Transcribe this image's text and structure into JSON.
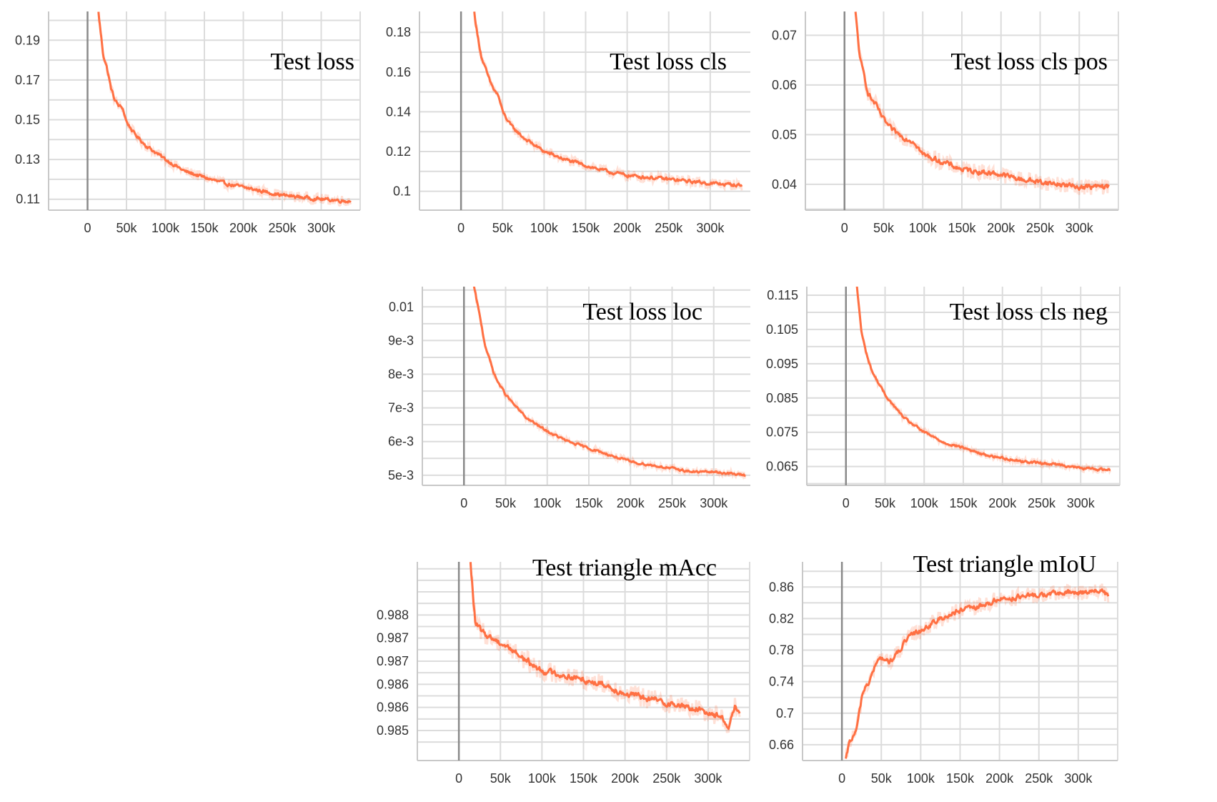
{
  "colors": {
    "series": "#ff7043",
    "grid": "#dcdcdc",
    "zero_line": "#8a8a8a"
  },
  "chart_data": [
    {
      "id": "test-loss",
      "type": "line",
      "title": "Test loss",
      "xlabel": "",
      "ylabel": "",
      "xlim": [
        -50000,
        350000
      ],
      "ylim": [
        0.1045,
        0.2045
      ],
      "x_ticks": [
        0,
        50000,
        100000,
        150000,
        200000,
        250000,
        300000
      ],
      "x_tick_labels": [
        "0",
        "50k",
        "100k",
        "150k",
        "200k",
        "250k",
        "300k"
      ],
      "y_ticks": [
        0.11,
        0.13,
        0.15,
        0.17,
        0.19
      ],
      "y_tick_labels": [
        "0.11",
        "0.13",
        "0.15",
        "0.17",
        "0.19"
      ],
      "grid": true,
      "noise": 0.0015,
      "series": [
        {
          "x": [
            14000,
            20000,
            25000,
            30000,
            35000,
            40000,
            45000,
            50000,
            60000,
            75000,
            100000,
            125000,
            150000,
            175000,
            200000,
            225000,
            250000,
            275000,
            300000,
            338000
          ],
          "y": [
            0.204,
            0.183,
            0.176,
            0.166,
            0.16,
            0.157,
            0.156,
            0.149,
            0.143,
            0.137,
            0.13,
            0.124,
            0.121,
            0.118,
            0.116,
            0.114,
            0.112,
            0.111,
            0.11,
            0.109
          ]
        }
      ]
    },
    {
      "id": "test-loss-cls",
      "type": "line",
      "title": "Test loss cls",
      "xlabel": "",
      "ylabel": "",
      "xlim": [
        -50000,
        350000
      ],
      "ylim": [
        0.0905,
        0.1905
      ],
      "x_ticks": [
        0,
        50000,
        100000,
        150000,
        200000,
        250000,
        300000
      ],
      "x_tick_labels": [
        "0",
        "50k",
        "100k",
        "150k",
        "200k",
        "250k",
        "300k"
      ],
      "y_ticks": [
        0.1,
        0.12,
        0.14,
        0.16,
        0.18
      ],
      "y_tick_labels": [
        "0.1",
        "0.12",
        "0.14",
        "0.16",
        "0.18"
      ],
      "grid": true,
      "noise": 0.0015,
      "series": [
        {
          "x": [
            16000,
            20000,
            25000,
            30000,
            35000,
            40000,
            45000,
            50000,
            60000,
            75000,
            100000,
            125000,
            150000,
            175000,
            200000,
            225000,
            250000,
            275000,
            300000,
            338000
          ],
          "y": [
            0.19,
            0.178,
            0.167,
            0.161,
            0.155,
            0.151,
            0.148,
            0.14,
            0.133,
            0.127,
            0.12,
            0.116,
            0.113,
            0.11,
            0.108,
            0.107,
            0.106,
            0.105,
            0.104,
            0.103
          ]
        }
      ]
    },
    {
      "id": "test-loss-cls-pos",
      "type": "line",
      "title": "Test loss cls  pos",
      "xlabel": "",
      "ylabel": "",
      "xlim": [
        -50000,
        350000
      ],
      "ylim": [
        0.0348,
        0.0748
      ],
      "x_ticks": [
        0,
        50000,
        100000,
        150000,
        200000,
        250000,
        300000
      ],
      "x_tick_labels": [
        "0",
        "50k",
        "100k",
        "150k",
        "200k",
        "250k",
        "300k"
      ],
      "y_ticks": [
        0.04,
        0.05,
        0.06,
        0.07
      ],
      "y_tick_labels": [
        "0.04",
        "0.05",
        "0.06",
        "0.07"
      ],
      "grid": true,
      "noise": 0.0009,
      "series": [
        {
          "x": [
            14000,
            20000,
            25000,
            30000,
            35000,
            40000,
            45000,
            50000,
            60000,
            75000,
            90000,
            100000,
            125000,
            150000,
            175000,
            200000,
            225000,
            250000,
            275000,
            300000,
            338000
          ],
          "y": [
            0.0745,
            0.065,
            0.062,
            0.0585,
            0.057,
            0.056,
            0.0545,
            0.053,
            0.051,
            0.0495,
            0.0485,
            0.046,
            0.0445,
            0.043,
            0.0425,
            0.042,
            0.041,
            0.0405,
            0.04,
            0.0395,
            0.0395
          ]
        }
      ]
    },
    {
      "id": "test-loss-loc",
      "type": "line",
      "title": "Test loss loc",
      "xlabel": "",
      "ylabel": "",
      "xlim": [
        -50000,
        350000
      ],
      "ylim": [
        0.0047,
        0.0106
      ],
      "x_ticks": [
        0,
        50000,
        100000,
        150000,
        200000,
        250000,
        300000
      ],
      "x_tick_labels": [
        "0",
        "50k",
        "100k",
        "150k",
        "200k",
        "250k",
        "300k"
      ],
      "y_ticks": [
        0.005,
        0.006,
        0.007,
        0.008,
        0.009,
        0.01
      ],
      "y_tick_labels": [
        "5e-3",
        "6e-3",
        "7e-3",
        "8e-3",
        "9e-3",
        "0.01"
      ],
      "grid": true,
      "noise": 6e-05,
      "series": [
        {
          "x": [
            12000,
            20000,
            25000,
            30000,
            35000,
            40000,
            45000,
            50000,
            60000,
            75000,
            100000,
            125000,
            150000,
            175000,
            200000,
            225000,
            250000,
            275000,
            300000,
            338000
          ],
          "y": [
            0.0106,
            0.0096,
            0.0089,
            0.0085,
            0.0081,
            0.0078,
            0.0076,
            0.0074,
            0.0071,
            0.0067,
            0.0063,
            0.006,
            0.0058,
            0.0056,
            0.0054,
            0.0053,
            0.0052,
            0.0051,
            0.0051,
            0.005
          ]
        }
      ]
    },
    {
      "id": "test-loss-cls-neg",
      "type": "line",
      "title": "Test loss cls  neg",
      "xlabel": "",
      "ylabel": "",
      "xlim": [
        -50000,
        350000
      ],
      "ylim": [
        0.0595,
        0.1175
      ],
      "x_ticks": [
        0,
        50000,
        100000,
        150000,
        200000,
        250000,
        300000
      ],
      "x_tick_labels": [
        "0",
        "50k",
        "100k",
        "150k",
        "200k",
        "250k",
        "300k"
      ],
      "y_ticks": [
        0.065,
        0.075,
        0.085,
        0.095,
        0.105,
        0.115
      ],
      "y_tick_labels": [
        "0.065",
        "0.075",
        "0.085",
        "0.095",
        "0.105",
        "0.115"
      ],
      "grid": true,
      "noise": 0.0006,
      "series": [
        {
          "x": [
            14000,
            20000,
            25000,
            30000,
            35000,
            40000,
            45000,
            50000,
            60000,
            75000,
            100000,
            125000,
            150000,
            175000,
            200000,
            225000,
            250000,
            275000,
            300000,
            338000
          ],
          "y": [
            0.1175,
            0.104,
            0.099,
            0.095,
            0.092,
            0.09,
            0.088,
            0.086,
            0.083,
            0.079,
            0.075,
            0.072,
            0.0705,
            0.0685,
            0.0675,
            0.0665,
            0.066,
            0.0655,
            0.0645,
            0.064
          ]
        }
      ]
    },
    {
      "id": "test-triangle-macc",
      "type": "line",
      "title": "Test triangle  mAcc",
      "xlabel": "",
      "ylabel": "",
      "xlim": [
        -50000,
        350000
      ],
      "ylim": [
        0.98455,
        0.98885
      ],
      "x_ticks": [
        0,
        50000,
        100000,
        150000,
        200000,
        250000,
        300000
      ],
      "x_tick_labels": [
        "0",
        "50k",
        "100k",
        "150k",
        "200k",
        "250k",
        "300k"
      ],
      "y_ticks": [
        0.9852,
        0.9857,
        0.9862,
        0.9867,
        0.9872,
        0.9877
      ],
      "y_tick_labels": [
        "0.985",
        "0.986",
        "0.986",
        "0.987",
        "0.987",
        "0.988"
      ],
      "grid": true,
      "noise": 0.00012,
      "series": [
        {
          "x": [
            14000,
            20000,
            30000,
            40000,
            50000,
            60000,
            75000,
            90000,
            100000,
            125000,
            150000,
            175000,
            200000,
            225000,
            250000,
            275000,
            300000,
            315000,
            325000,
            332000,
            338000
          ],
          "y": [
            0.9888,
            0.9875,
            0.9873,
            0.9872,
            0.9871,
            0.987,
            0.9868,
            0.9866,
            0.9865,
            0.9864,
            0.9863,
            0.9862,
            0.986,
            0.9859,
            0.9858,
            0.9857,
            0.9856,
            0.9855,
            0.9853,
            0.9857,
            0.9856
          ]
        }
      ]
    },
    {
      "id": "test-triangle-miou",
      "type": "line",
      "title": "Test triangle  mIoU",
      "xlabel": "",
      "ylabel": "",
      "xlim": [
        -50000,
        350000
      ],
      "ylim": [
        0.64,
        0.892
      ],
      "x_ticks": [
        0,
        50000,
        100000,
        150000,
        200000,
        250000,
        300000
      ],
      "x_tick_labels": [
        "0",
        "50k",
        "100k",
        "150k",
        "200k",
        "250k",
        "300k"
      ],
      "y_ticks": [
        0.66,
        0.7,
        0.74,
        0.78,
        0.82,
        0.86
      ],
      "y_tick_labels": [
        "0.66",
        "0.7",
        "0.74",
        "0.78",
        "0.82",
        "0.86"
      ],
      "grid": true,
      "noise": 0.006,
      "series": [
        {
          "x": [
            5000,
            10000,
            15000,
            20000,
            25000,
            30000,
            35000,
            40000,
            45000,
            50000,
            60000,
            70000,
            80000,
            90000,
            100000,
            125000,
            150000,
            175000,
            200000,
            225000,
            250000,
            275000,
            300000,
            325000,
            338000
          ],
          "y": [
            0.64,
            0.665,
            0.67,
            0.685,
            0.72,
            0.735,
            0.74,
            0.755,
            0.765,
            0.77,
            0.765,
            0.775,
            0.79,
            0.8,
            0.805,
            0.82,
            0.83,
            0.835,
            0.845,
            0.847,
            0.85,
            0.852,
            0.853,
            0.856,
            0.85
          ]
        }
      ]
    }
  ]
}
